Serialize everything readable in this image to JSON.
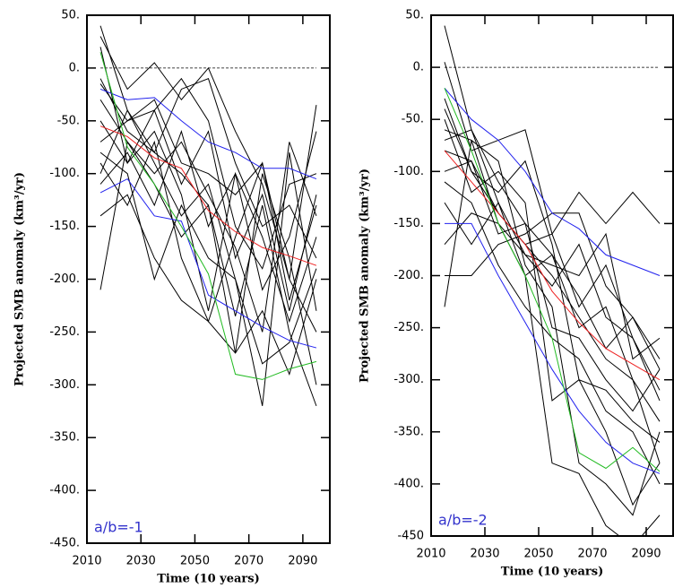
{
  "chart_data": [
    {
      "type": "line",
      "xlabel": "Time (10 years)",
      "ylabel": "Projected SMB anomaly (km³/yr)",
      "annotation": "a/b=-1",
      "annotation_color": "#3333cc",
      "x": [
        2015,
        2025,
        2035,
        2045,
        2055,
        2065,
        2075,
        2085,
        2095
      ],
      "xlim": [
        2010,
        2100
      ],
      "ylim": [
        -450,
        50
      ],
      "xticks": [
        2010,
        2030,
        2050,
        2070,
        2090
      ],
      "yticks": [
        {
          "value": 50,
          "label": "50."
        },
        {
          "value": 0,
          "label": "0."
        },
        {
          "value": -50,
          "label": "-50."
        },
        {
          "value": -100,
          "label": "-100."
        },
        {
          "value": -150,
          "label": "-150."
        },
        {
          "value": -200,
          "label": "-200."
        },
        {
          "value": -250,
          "label": "-250."
        },
        {
          "value": -300,
          "label": "-300."
        },
        {
          "value": -350,
          "label": "-350."
        },
        {
          "value": -400,
          "label": "-400."
        },
        {
          "value": -450,
          "label": "-450."
        }
      ],
      "hline": 0,
      "series": [
        {
          "color": "#000000",
          "values": [
            40,
            -40,
            -80,
            -100,
            -130,
            -235,
            -130,
            -250,
            -320
          ]
        },
        {
          "color": "#000000",
          "values": [
            30,
            -20,
            5,
            -30,
            0,
            -60,
            -110,
            -200,
            -35
          ]
        },
        {
          "color": "#000000",
          "values": [
            -10,
            -60,
            -80,
            -20,
            -10,
            -90,
            -150,
            -130,
            -180
          ]
        },
        {
          "color": "#000000",
          "values": [
            -70,
            -50,
            -40,
            -110,
            -60,
            -180,
            -120,
            -230,
            -120
          ]
        },
        {
          "color": "#000000",
          "values": [
            -110,
            -80,
            -130,
            -60,
            -150,
            -100,
            -210,
            -160,
            -60
          ]
        },
        {
          "color": "#000000",
          "values": [
            -210,
            -70,
            -110,
            -160,
            -130,
            -270,
            -100,
            -180,
            -300
          ]
        },
        {
          "color": "#000000",
          "values": [
            -30,
            -70,
            -100,
            -70,
            -120,
            -170,
            -250,
            -70,
            -140
          ]
        },
        {
          "color": "#000000",
          "values": [
            -80,
            -100,
            -200,
            -130,
            -180,
            -200,
            -320,
            -80,
            -230
          ]
        },
        {
          "color": "#000000",
          "values": [
            -15,
            -50,
            -30,
            -90,
            -100,
            -120,
            -90,
            -200,
            -250
          ]
        },
        {
          "color": "#000000",
          "values": [
            -140,
            -120,
            -180,
            -220,
            -240,
            -270,
            -230,
            -290,
            -200
          ]
        },
        {
          "color": "#000000",
          "values": [
            -50,
            -90,
            -60,
            -120,
            -230,
            -100,
            -160,
            -240,
            -160
          ]
        },
        {
          "color": "#000000",
          "values": [
            20,
            -90,
            -40,
            -10,
            -50,
            -150,
            -190,
            -110,
            -100
          ]
        },
        {
          "color": "#000000",
          "values": [
            -100,
            -40,
            -90,
            -140,
            -110,
            -200,
            -280,
            -260,
            -190
          ]
        },
        {
          "color": "#000000",
          "values": [
            -90,
            -130,
            -70,
            -180,
            -240,
            -160,
            -90,
            -220,
            -130
          ]
        },
        {
          "color": "#ee2222",
          "values": [
            -55,
            -65,
            -85,
            -95,
            -135,
            -155,
            -170,
            -178,
            -187
          ]
        },
        {
          "color": "#2222ee",
          "values": [
            -20,
            -30,
            -28,
            -50,
            -70,
            -80,
            -95,
            -95,
            -105
          ]
        },
        {
          "color": "#2222ee",
          "values": [
            -118,
            -105,
            -140,
            -145,
            -215,
            -230,
            -245,
            -258,
            -265
          ]
        },
        {
          "color": "#22bb22",
          "values": [
            15,
            -75,
            -110,
            -150,
            -195,
            -290,
            -295,
            -285,
            -278
          ]
        }
      ]
    },
    {
      "type": "line",
      "xlabel": "Time (10 years)",
      "ylabel": "Projected SMB anomaly (km³/yr)",
      "annotation": "a/b=-2",
      "annotation_color": "#3333cc",
      "x": [
        2015,
        2025,
        2035,
        2045,
        2055,
        2065,
        2075,
        2085,
        2095
      ],
      "xlim": [
        2010,
        2100
      ],
      "ylim": [
        -450,
        50
      ],
      "xticks": [
        2010,
        2030,
        2050,
        2070,
        2090
      ],
      "yticks": [
        {
          "value": 50,
          "label": "50."
        },
        {
          "value": 0,
          "label": "0."
        },
        {
          "value": -50,
          "label": "-50."
        },
        {
          "value": -100,
          "label": "-100."
        },
        {
          "value": -150,
          "label": "-150."
        },
        {
          "value": -200,
          "label": "-200."
        },
        {
          "value": -250,
          "label": "-250."
        },
        {
          "value": -300,
          "label": "-300."
        },
        {
          "value": -350,
          "label": "-350."
        },
        {
          "value": -400,
          "label": "-400."
        },
        {
          "value": -450,
          "label": "-450"
        }
      ],
      "hline": 0,
      "series": [
        {
          "color": "#000000",
          "values": [
            40,
            -60,
            -110,
            -150,
            -180,
            -220,
            -270,
            -240,
            -280
          ]
        },
        {
          "color": "#000000",
          "values": [
            5,
            -80,
            -70,
            -60,
            -160,
            -120,
            -150,
            -120,
            -150
          ]
        },
        {
          "color": "#000000",
          "values": [
            -30,
            -100,
            -140,
            -170,
            -200,
            -240,
            -280,
            -300,
            -380
          ]
        },
        {
          "color": "#000000",
          "values": [
            -60,
            -70,
            -90,
            -190,
            -230,
            -380,
            -400,
            -430,
            -350
          ]
        },
        {
          "color": "#000000",
          "values": [
            -100,
            -90,
            -160,
            -150,
            -250,
            -260,
            -300,
            -330,
            -290
          ]
        },
        {
          "color": "#000000",
          "values": [
            -230,
            -70,
            -150,
            -180,
            -210,
            -170,
            -240,
            -260,
            -320
          ]
        },
        {
          "color": "#000000",
          "values": [
            -50,
            -120,
            -100,
            -130,
            -320,
            -300,
            -350,
            -420,
            -380
          ]
        },
        {
          "color": "#000000",
          "values": [
            -130,
            -170,
            -130,
            -200,
            -380,
            -390,
            -440,
            -460,
            -430
          ]
        },
        {
          "color": "#000000",
          "values": [
            -70,
            -60,
            -130,
            -180,
            -190,
            -200,
            -160,
            -280,
            -260
          ]
        },
        {
          "color": "#000000",
          "values": [
            -170,
            -140,
            -150,
            -200,
            -180,
            -250,
            -230,
            -300,
            -340
          ]
        },
        {
          "color": "#000000",
          "values": [
            -200,
            -200,
            -170,
            -160,
            -140,
            -140,
            -210,
            -240,
            -290
          ]
        },
        {
          "color": "#000000",
          "values": [
            -40,
            -100,
            -120,
            -90,
            -170,
            -300,
            -310,
            -340,
            -360
          ]
        },
        {
          "color": "#000000",
          "values": [
            -110,
            -130,
            -190,
            -230,
            -260,
            -280,
            -330,
            -350,
            -400
          ]
        },
        {
          "color": "#000000",
          "values": [
            -80,
            -90,
            -140,
            -170,
            -160,
            -230,
            -190,
            -260,
            -310
          ]
        },
        {
          "color": "#ee2222",
          "values": [
            -80,
            -110,
            -140,
            -170,
            -215,
            -245,
            -270,
            -285,
            -300
          ]
        },
        {
          "color": "#2222ee",
          "values": [
            -20,
            -50,
            -70,
            -100,
            -140,
            -155,
            -180,
            -190,
            -200
          ]
        },
        {
          "color": "#2222ee",
          "values": [
            -150,
            -150,
            -200,
            -245,
            -290,
            -330,
            -360,
            -380,
            -390
          ]
        },
        {
          "color": "#22bb22",
          "values": [
            -20,
            -80,
            -150,
            -200,
            -260,
            -370,
            -385,
            -365,
            -388
          ]
        }
      ]
    }
  ]
}
